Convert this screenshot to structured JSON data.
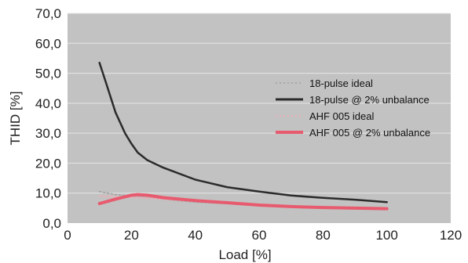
{
  "chart_data": {
    "type": "line",
    "xlabel": "Load [%]",
    "ylabel": "THID [%]",
    "xlim": [
      0,
      120
    ],
    "ylim": [
      0,
      70
    ],
    "x_ticks": [
      "0",
      "20",
      "40",
      "60",
      "80",
      "100",
      "120"
    ],
    "y_ticks": [
      "0,0",
      "10,0",
      "20,0",
      "30,0",
      "40,0",
      "50,0",
      "60,0",
      "70,0"
    ],
    "grid": "horizontal",
    "plot_background": "#c2c2c2",
    "legend_position": "right",
    "series": [
      {
        "name": "18-pulse ideal",
        "color": "#a8a8a8",
        "style": "dotted",
        "x": [
          10,
          15,
          20,
          25,
          30,
          40,
          50,
          60,
          70,
          80,
          90,
          100
        ],
        "y": [
          10.5,
          9.5,
          9.0,
          8.5,
          8.0,
          7.0,
          6.5,
          6.0,
          5.5,
          5.2,
          5.0,
          4.8
        ]
      },
      {
        "name": "18-pulse @ 2% unbalance",
        "color": "#2b2b2b",
        "style": "solid",
        "x": [
          10,
          12,
          15,
          18,
          20,
          22,
          25,
          30,
          40,
          50,
          60,
          70,
          80,
          90,
          100
        ],
        "y": [
          53.5,
          47.0,
          37.0,
          30.0,
          26.5,
          23.5,
          21.0,
          18.5,
          14.5,
          12.0,
          10.5,
          9.2,
          8.4,
          7.8,
          7.0
        ]
      },
      {
        "name": "AHF 005 ideal",
        "color": "#e8b0b8",
        "style": "dotted",
        "x": [
          10,
          15,
          20,
          25,
          30,
          40,
          50,
          60,
          70,
          80,
          90,
          100
        ],
        "y": [
          9.0,
          8.8,
          8.6,
          8.3,
          8.0,
          7.3,
          6.8,
          6.2,
          5.7,
          5.3,
          5.0,
          4.7
        ]
      },
      {
        "name": "AHF 005 @ 2% unbalance",
        "color": "#e85a6e",
        "style": "solid",
        "x": [
          10,
          15,
          20,
          22,
          25,
          30,
          40,
          50,
          60,
          70,
          80,
          90,
          100
        ],
        "y": [
          6.5,
          8.0,
          9.3,
          9.5,
          9.3,
          8.5,
          7.5,
          6.8,
          6.0,
          5.5,
          5.2,
          5.0,
          4.8
        ]
      }
    ]
  }
}
